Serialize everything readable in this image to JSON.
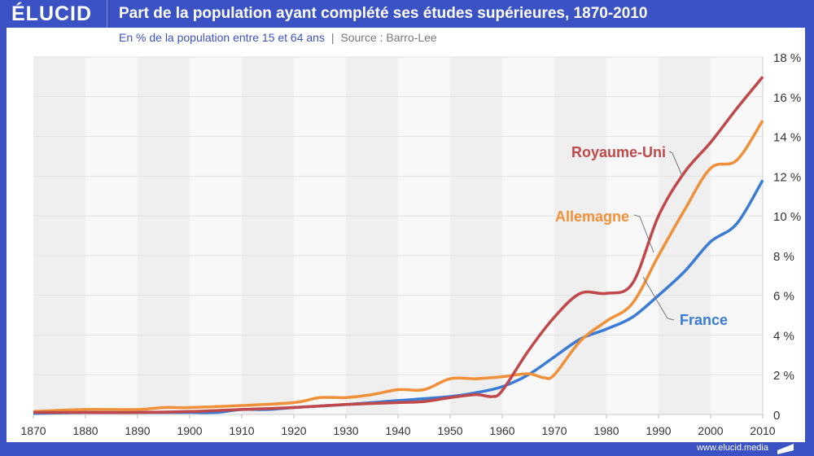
{
  "header": {
    "logo": "ÉLUCID",
    "title": "Part de la population ayant complété ses études supérieures, 1870-2010"
  },
  "subtitle": {
    "text": "En % de la population entre 15 et 64 ans",
    "separator": "|",
    "source": "Source : Barro-Lee"
  },
  "footer": {
    "url": "www.elucid.media"
  },
  "colors": {
    "frame": "#3b52c4",
    "uk": "#c0474a",
    "de": "#f0913a",
    "fr": "#3a7bd5"
  },
  "chart_data": {
    "type": "line",
    "title": "Part de la population ayant complété ses études supérieures, 1870-2010",
    "xlabel": "",
    "ylabel": "%",
    "xlim": [
      1870,
      2010
    ],
    "ylim": [
      0,
      18
    ],
    "x_ticks": [
      "1870",
      "1880",
      "1890",
      "1900",
      "1910",
      "1920",
      "1930",
      "1940",
      "1950",
      "1960",
      "1970",
      "1980",
      "1990",
      "2000",
      "2010"
    ],
    "y_ticks": [
      "0",
      "2 %",
      "4 %",
      "6 %",
      "8 %",
      "10 %",
      "12 %",
      "14 %",
      "16 %",
      "18 %"
    ],
    "series": [
      {
        "name": "Royaume-Uni",
        "color": "#c0474a",
        "x": [
          1870,
          1880,
          1890,
          1900,
          1910,
          1920,
          1930,
          1940,
          1945,
          1950,
          1955,
          1958,
          1960,
          1965,
          1970,
          1975,
          1980,
          1985,
          1990,
          1995,
          2000,
          2005,
          2010
        ],
        "values": [
          0.1,
          0.1,
          0.1,
          0.15,
          0.25,
          0.35,
          0.5,
          0.6,
          0.65,
          0.85,
          1.0,
          0.9,
          1.2,
          3.2,
          4.9,
          6.1,
          6.1,
          6.6,
          10.0,
          12.2,
          13.7,
          15.4,
          17.0
        ]
      },
      {
        "name": "Allemagne",
        "color": "#f0913a",
        "x": [
          1870,
          1880,
          1890,
          1895,
          1900,
          1910,
          1920,
          1925,
          1930,
          1935,
          1940,
          1945,
          1950,
          1955,
          1960,
          1965,
          1968,
          1970,
          1975,
          1980,
          1985,
          1990,
          1995,
          2000,
          2005,
          2010
        ],
        "values": [
          0.15,
          0.25,
          0.25,
          0.35,
          0.35,
          0.45,
          0.6,
          0.85,
          0.85,
          1.0,
          1.25,
          1.25,
          1.8,
          1.8,
          1.9,
          2.05,
          1.85,
          2.0,
          3.7,
          4.7,
          5.6,
          8.0,
          10.3,
          12.4,
          12.8,
          14.8
        ]
      },
      {
        "name": "France",
        "color": "#3a7bd5",
        "x": [
          1870,
          1880,
          1890,
          1900,
          1905,
          1910,
          1915,
          1920,
          1930,
          1940,
          1950,
          1955,
          1960,
          1965,
          1970,
          1975,
          1980,
          1985,
          1990,
          1995,
          2000,
          2005,
          2010
        ],
        "values": [
          0.05,
          0.1,
          0.1,
          0.1,
          0.1,
          0.25,
          0.25,
          0.35,
          0.5,
          0.7,
          0.9,
          1.1,
          1.4,
          2.0,
          2.9,
          3.8,
          4.3,
          4.9,
          6.0,
          7.2,
          8.7,
          9.6,
          11.8
        ]
      }
    ],
    "labels": [
      "Royaume-Uni",
      "Allemagne",
      "France"
    ]
  }
}
